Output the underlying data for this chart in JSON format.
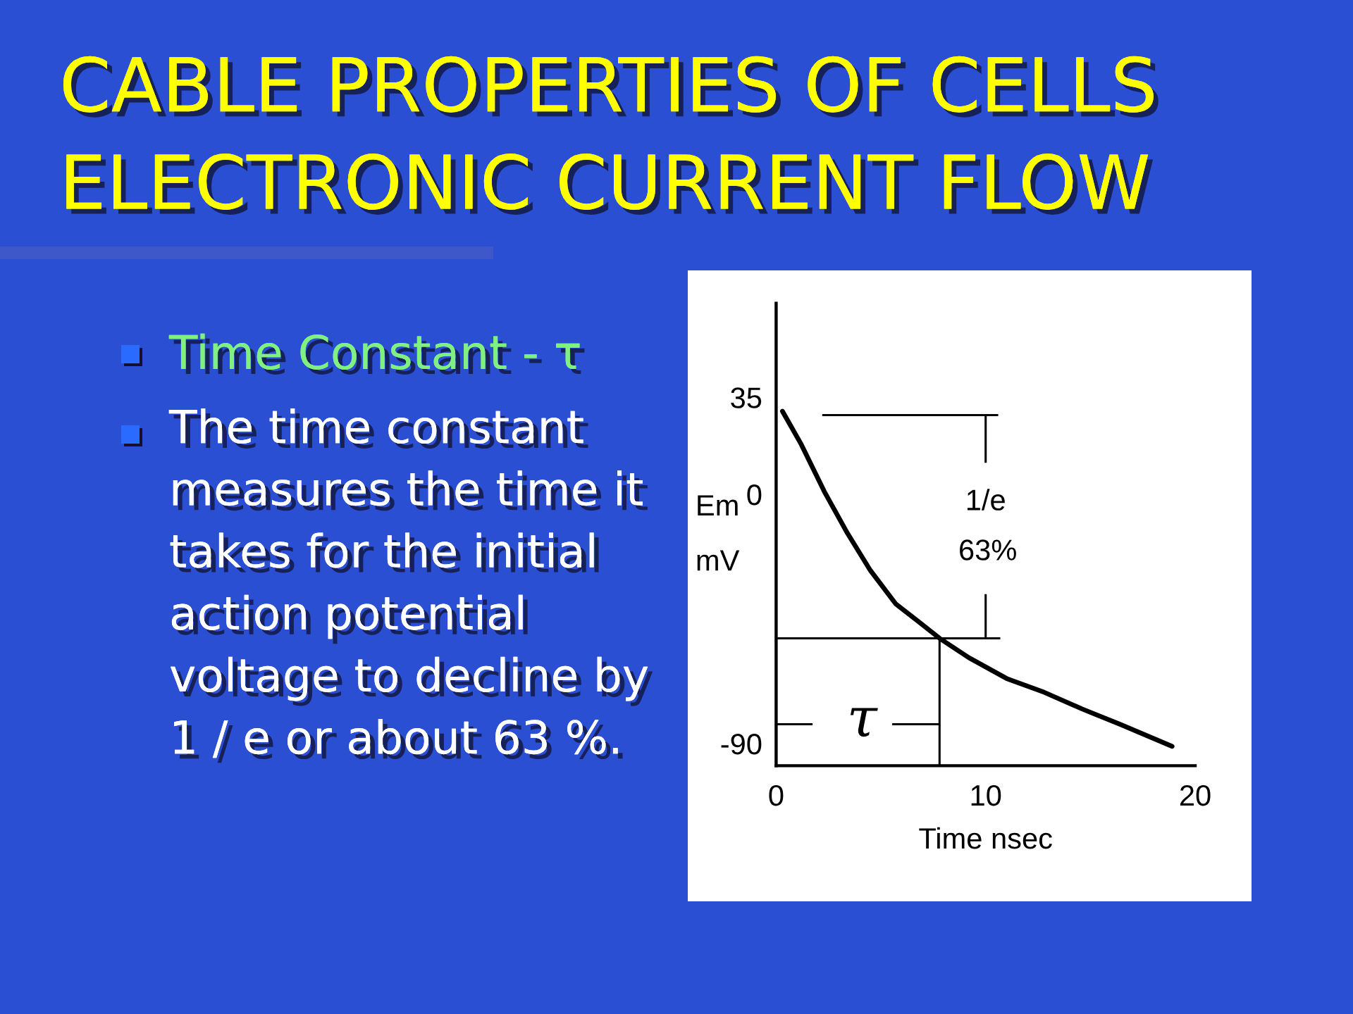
{
  "chart_data": {
    "type": "line",
    "title": "CABLE PROPERTIES OF CELLS\nELECTRONIC CURRENT FLOW",
    "subtitle": "Time Constant - τ",
    "xlabel": "Time nsec",
    "ylabel": "Em\nmV",
    "annotations": [
      "The time constant\nmeasures the time it\ntakes for the initial\naction potential\nvoltage to decline by\n1 / e or about 63 %.",
      "1/e",
      "63%",
      "τ"
    ],
    "series": [
      {
        "color": "#000000",
        "x": [
          0.3,
          1.2,
          2.3,
          3.4,
          4.5,
          5.7,
          6.8,
          7.8,
          9.2,
          11.0,
          12.8,
          14.6,
          16.4,
          18.9
        ],
        "values": [
          30,
          18,
          1,
          -14,
          -27.5,
          -39.5,
          -46,
          -52,
          -59,
          -66.5,
          -71.5,
          -77.5,
          -83,
          -91
        ]
      }
    ],
    "ref_lines": [
      {
        "axis": "y",
        "value": 28.6,
        "color": "#000000"
      },
      {
        "axis": "y",
        "value": -52,
        "color": "#000000"
      },
      {
        "axis": "x",
        "value": 7.8,
        "color": "#000000"
      }
    ],
    "xlim": [
      0,
      20
    ],
    "xticks": [
      0,
      10,
      20
    ],
    "ylim": [
      -98,
      69
    ],
    "yticks": [
      -90,
      0,
      35
    ],
    "line_style": "solid"
  }
}
